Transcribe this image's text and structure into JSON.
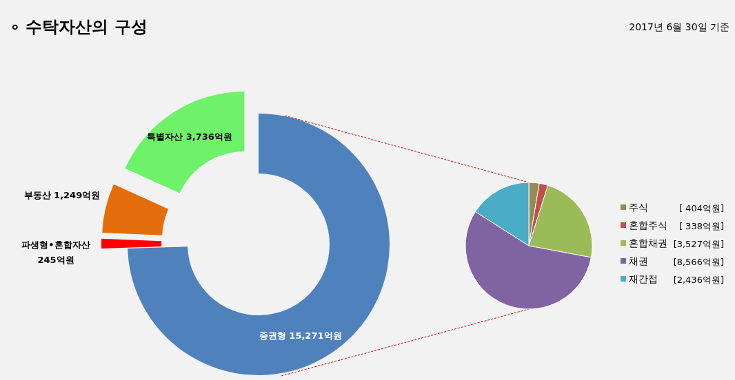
{
  "chart_data": [
    {
      "type": "donut",
      "title": "∘ 수탁자산의 구성",
      "annotations": [
        "2017년 6월 30일 기준"
      ],
      "categories": [
        "증권형",
        "파생형•혼합자산",
        "부동산",
        "특별자산"
      ],
      "values": [
        15271,
        245,
        1249,
        3736
      ],
      "colors": [
        "#4f81bd",
        "#ff0000",
        "#e46c0a",
        "#6ef26a"
      ],
      "value_labels": [
        "15,271억원",
        "245억원",
        "1,249억원",
        "3,736억원"
      ]
    },
    {
      "type": "pie",
      "legend": "right",
      "categories": [
        "주식",
        "혼합주식",
        "혼합채권",
        "채권",
        "재간접"
      ],
      "values": [
        404,
        338,
        3527,
        8566,
        2436
      ],
      "colors": [
        "#948a54",
        "#c0504d",
        "#9bbb59",
        "#8064a2",
        "#4bacc6"
      ],
      "value_labels": [
        "[   404억원]",
        "[   338억원]",
        "[3,527억원]",
        "[8,566억원]",
        "[2,436억원]"
      ]
    }
  ]
}
